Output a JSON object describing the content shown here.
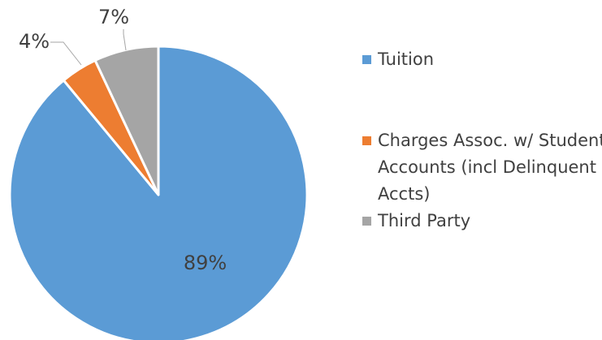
{
  "chart_data": {
    "type": "pie",
    "categories": [
      "Tuition",
      "Charges Assoc. w/ Student Accounts (incl Delinquent Accts)",
      "Third Party"
    ],
    "values": [
      89,
      4,
      7
    ],
    "value_labels": [
      "89%",
      "4%",
      "7%"
    ],
    "colors": [
      "#5b9bd5",
      "#ed7d31",
      "#a5a5a5"
    ],
    "legend": "right"
  }
}
